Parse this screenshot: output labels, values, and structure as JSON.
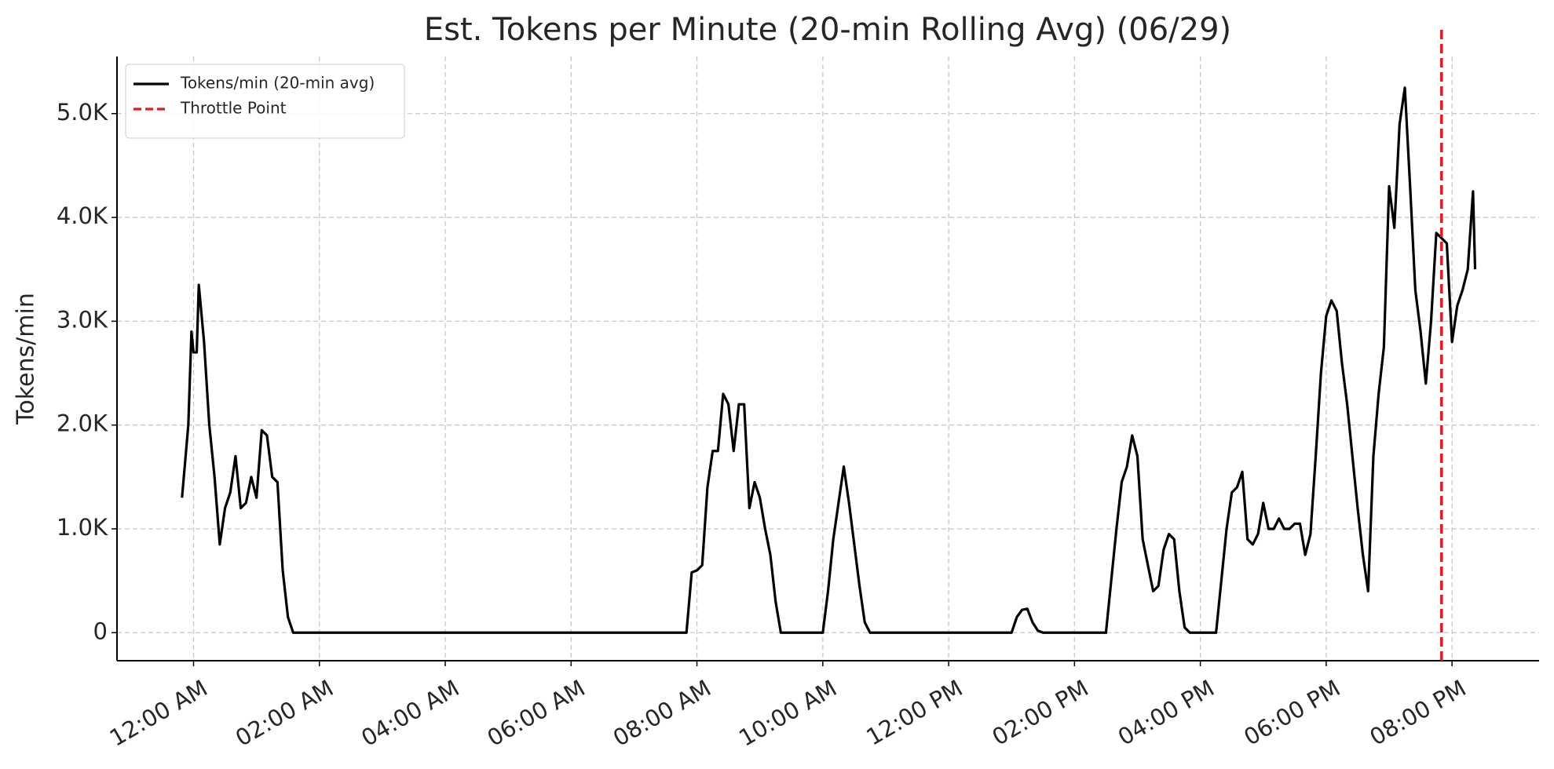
{
  "chart_data": {
    "type": "line",
    "title": "Est. Tokens per Minute (20-min Rolling Avg) (06/29)",
    "ylabel": "Tokens/min",
    "x": [
      "11:49 PM",
      "11:55 PM",
      "11:58 PM",
      "12:00 AM",
      "12:03 AM",
      "12:05 AM",
      "12:10 AM",
      "12:15 AM",
      "12:20 AM",
      "12:25 AM",
      "12:30 AM",
      "12:35 AM",
      "12:40 AM",
      "12:45 AM",
      "12:50 AM",
      "12:55 AM",
      "01:00 AM",
      "01:05 AM",
      "01:10 AM",
      "01:15 AM",
      "01:20 AM",
      "01:25 AM",
      "01:30 AM",
      "01:35 AM",
      "07:50 AM",
      "07:55 AM",
      "08:00 AM",
      "08:05 AM",
      "08:10 AM",
      "08:15 AM",
      "08:20 AM",
      "08:25 AM",
      "08:30 AM",
      "08:35 AM",
      "08:40 AM",
      "08:45 AM",
      "08:50 AM",
      "08:55 AM",
      "09:00 AM",
      "09:05 AM",
      "09:10 AM",
      "09:15 AM",
      "09:20 AM",
      "10:00 AM",
      "10:05 AM",
      "10:10 AM",
      "10:15 AM",
      "10:20 AM",
      "10:25 AM",
      "10:30 AM",
      "10:35 AM",
      "10:40 AM",
      "10:45 AM",
      "01:00 PM",
      "01:05 PM",
      "01:10 PM",
      "01:15 PM",
      "01:20 PM",
      "01:25 PM",
      "01:30 PM",
      "02:30 PM",
      "02:35 PM",
      "02:40 PM",
      "02:45 PM",
      "02:50 PM",
      "02:55 PM",
      "03:00 PM",
      "03:05 PM",
      "03:10 PM",
      "03:15 PM",
      "03:20 PM",
      "03:25 PM",
      "03:30 PM",
      "03:35 PM",
      "03:40 PM",
      "03:45 PM",
      "03:50 PM",
      "04:15 PM",
      "04:20 PM",
      "04:25 PM",
      "04:30 PM",
      "04:35 PM",
      "04:40 PM",
      "04:45 PM",
      "04:50 PM",
      "04:55 PM",
      "05:00 PM",
      "05:05 PM",
      "05:10 PM",
      "05:15 PM",
      "05:20 PM",
      "05:25 PM",
      "05:30 PM",
      "05:35 PM",
      "05:40 PM",
      "05:45 PM",
      "05:50 PM",
      "05:55 PM",
      "06:00 PM",
      "06:05 PM",
      "06:10 PM",
      "06:15 PM",
      "06:20 PM",
      "06:25 PM",
      "06:30 PM",
      "06:35 PM",
      "06:40 PM",
      "06:45 PM",
      "06:50 PM",
      "06:55 PM",
      "07:00 PM",
      "07:05 PM",
      "07:10 PM",
      "07:15 PM",
      "07:20 PM",
      "07:25 PM",
      "07:30 PM",
      "07:35 PM",
      "07:40 PM",
      "07:45 PM",
      "07:50 PM",
      "07:55 PM",
      "08:00 PM",
      "08:05 PM",
      "08:10 PM",
      "08:15 PM",
      "08:20 PM",
      "08:22 PM"
    ],
    "series": [
      {
        "name": "Tokens/min (20-min avg)",
        "color": "#000000",
        "values": [
          1300,
          2000,
          2900,
          2700,
          2700,
          3350,
          2800,
          2000,
          1500,
          850,
          1200,
          1350,
          1700,
          1200,
          1250,
          1500,
          1300,
          1950,
          1900,
          1500,
          1450,
          600,
          150,
          0,
          0,
          580,
          600,
          650,
          1400,
          1750,
          1750,
          2300,
          2200,
          1750,
          2200,
          2200,
          1200,
          1450,
          1300,
          1000,
          750,
          300,
          0,
          0,
          400,
          900,
          1250,
          1600,
          1250,
          850,
          450,
          100,
          0,
          0,
          150,
          220,
          230,
          100,
          20,
          0,
          0,
          500,
          1000,
          1450,
          1600,
          1900,
          1700,
          900,
          650,
          400,
          450,
          800,
          950,
          900,
          400,
          50,
          0,
          0,
          500,
          1000,
          1350,
          1400,
          1550,
          900,
          850,
          950,
          1250,
          1000,
          1000,
          1100,
          1000,
          1000,
          1050,
          1050,
          750,
          950,
          1700,
          2500,
          3050,
          3200,
          3100,
          2600,
          2200,
          1700,
          1200,
          750,
          400,
          1700,
          2300,
          2750,
          4300,
          3900,
          4900,
          5250,
          4300,
          3300,
          2900,
          2400,
          3000,
          3850,
          3800,
          3750,
          2800,
          3150,
          3300,
          3500,
          4250,
          3500
        ]
      }
    ],
    "vlines": [
      {
        "x": "07:50 PM",
        "name": "Throttle Point",
        "color": "#e41a1c"
      }
    ],
    "xlim": [
      "10:47 PM",
      "09:23 PM"
    ],
    "xticks": [
      "12:00 AM",
      "02:00 AM",
      "04:00 AM",
      "06:00 AM",
      "08:00 AM",
      "10:00 AM",
      "12:00 PM",
      "02:00 PM",
      "04:00 PM",
      "06:00 PM",
      "08:00 PM"
    ],
    "ylim": [
      -270,
      5550
    ],
    "yticks": [
      0,
      {
        "value": 1000,
        "label": "1.0K"
      },
      {
        "value": 2000,
        "label": "2.0K"
      },
      {
        "value": 3000,
        "label": "3.0K"
      },
      {
        "value": 4000,
        "label": "4.0K"
      },
      {
        "value": 5000,
        "label": "5.0K"
      }
    ],
    "grid": true,
    "legend": "upper left"
  }
}
